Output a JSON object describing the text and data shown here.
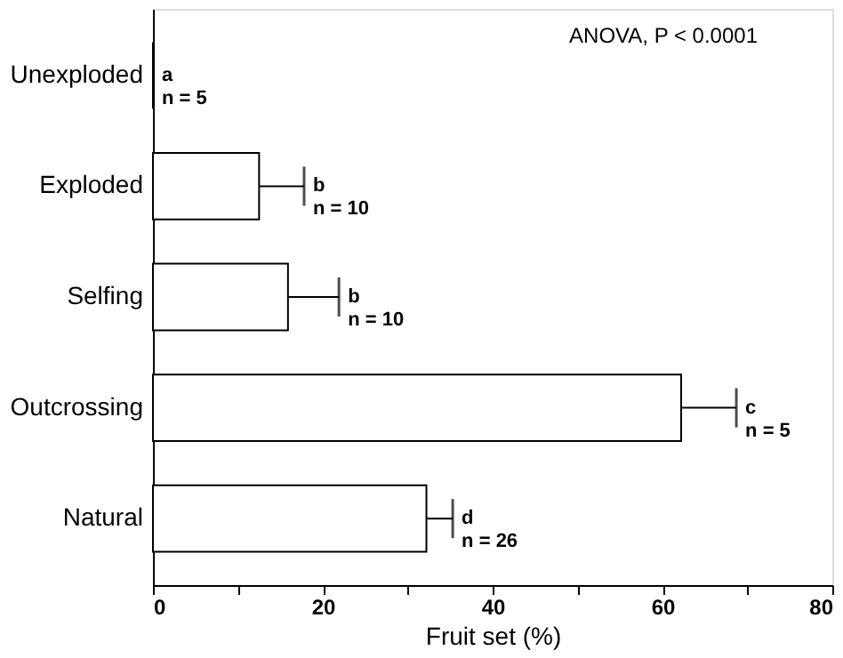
{
  "chart_data": {
    "type": "bar",
    "orientation": "horizontal",
    "xlabel": "Fruit set (%)",
    "categories": [
      "Unexploded",
      "Exploded",
      "Selfing",
      "Outcrossing",
      "Natural"
    ],
    "values": [
      0,
      12.5,
      15.9,
      62.2,
      32.2
    ],
    "errors": [
      null,
      [
        12.5,
        17.8
      ],
      [
        15.9,
        21.9
      ],
      [
        62.2,
        68.7
      ],
      [
        32.2,
        35.3
      ]
    ],
    "color": "#ffffff",
    "xlim": [
      0,
      80
    ],
    "xticks": [
      0,
      {
        "value": 10,
        "label": null
      },
      20,
      {
        "value": 30,
        "label": null
      },
      40,
      {
        "value": 50,
        "label": null
      },
      60,
      {
        "value": 70,
        "label": null
      },
      80
    ],
    "annotations": [
      {
        "text": "a\nn = 5",
        "x": 0,
        "y": "Unexploded"
      },
      {
        "text": "b\nn = 10",
        "x": 17.8,
        "y": "Exploded"
      },
      {
        "text": "b\nn = 10",
        "x": 21.9,
        "y": "Selfing"
      },
      {
        "text": "c\nn = 5",
        "x": 68.7,
        "y": "Outcrossing"
      },
      {
        "text": "d\nn = 26",
        "x": 35.3,
        "y": "Natural"
      },
      "ANOVA, P < 0.0001"
    ]
  }
}
